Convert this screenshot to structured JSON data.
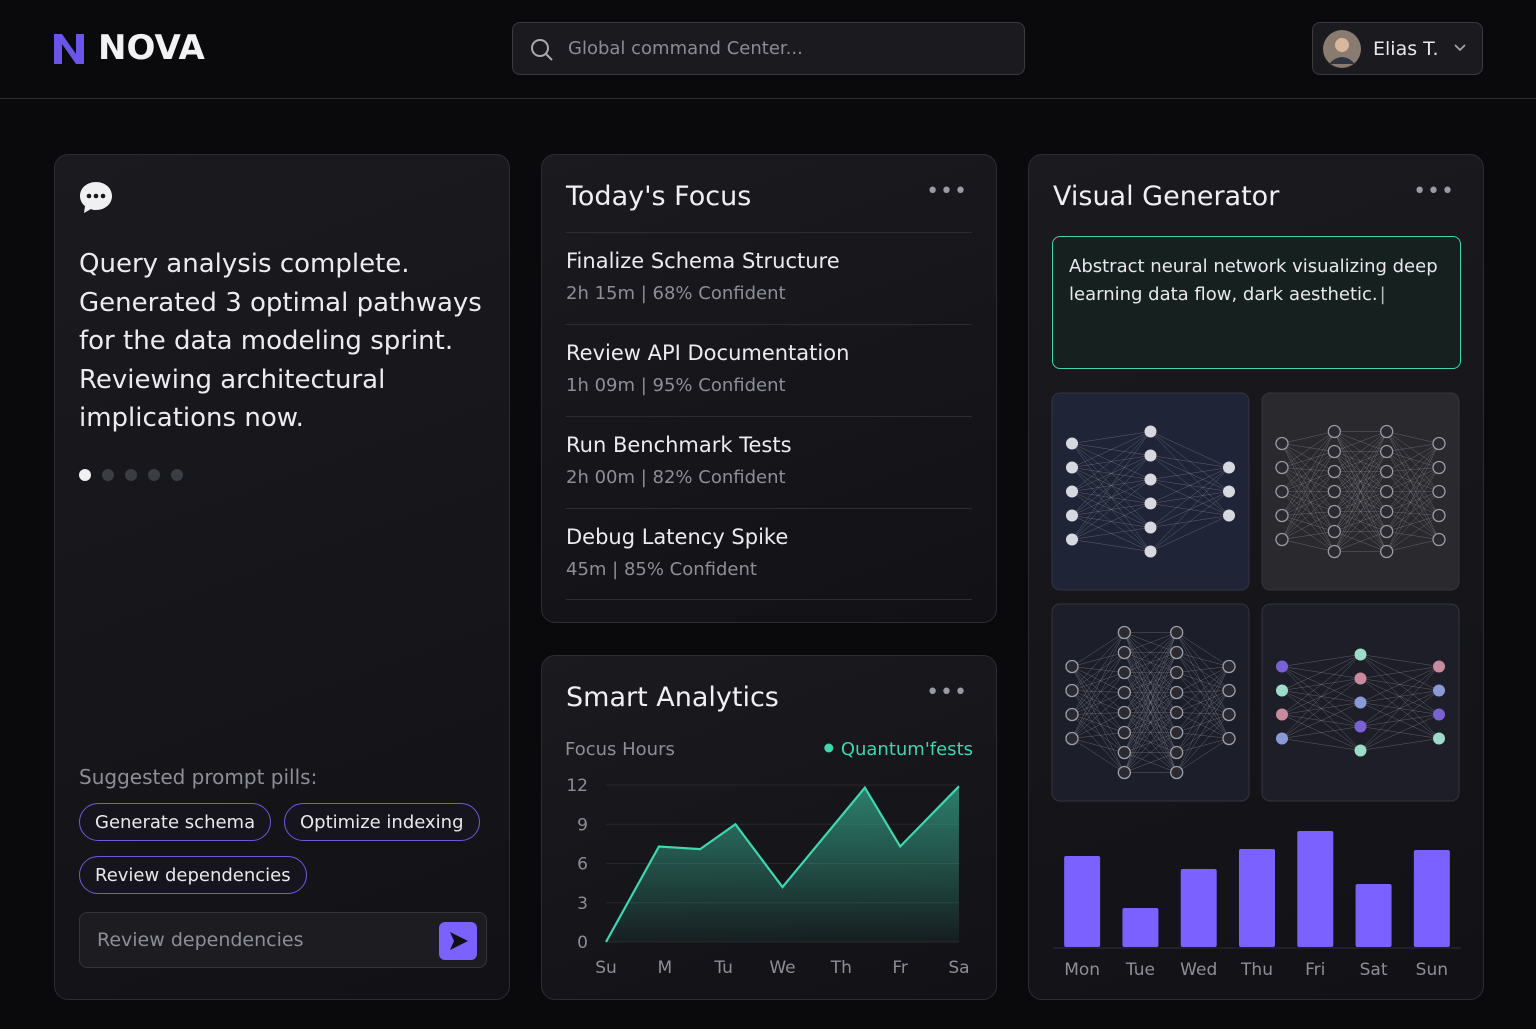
{
  "header": {
    "logo": "NOVA",
    "search_placeholder": "Global command Center...",
    "user": "Elias T."
  },
  "assistant": {
    "message": "Query analysis complete. Generated 3 optimal pathways for the data modeling sprint. Reviewing architectural implications now.",
    "pills_label": "Suggested prompt pills:",
    "pills": [
      "Generate schema",
      "Optimize indexing",
      "Review dependencies"
    ],
    "input_value": "Review dependencies"
  },
  "focus": {
    "title": "Today's Focus",
    "items": [
      {
        "title": "Finalize Schema Structure",
        "meta": "2h 15m | 68% Confident"
      },
      {
        "title": "Review API Documentation",
        "meta": "1h 09m | 95% Confident"
      },
      {
        "title": "Run Benchmark Tests",
        "meta": "2h 00m | 82% Confident"
      },
      {
        "title": "Debug Latency Spike",
        "meta": "45m | 85% Confident"
      }
    ]
  },
  "visual_generator": {
    "title": "Visual Generator",
    "prompt": "Abstract neural network visualizing deep learning data flow, dark aesthetic."
  },
  "chart_data": [
    {
      "type": "area",
      "title": "Smart Analytics",
      "y_label": "Focus Hours",
      "x": [
        0,
        0.9,
        1.6,
        2.2,
        3,
        4.4,
        5,
        6
      ],
      "xlim": [
        0,
        6
      ],
      "xticks": [
        {
          "value": 0,
          "label": "Su"
        },
        {
          "value": 1,
          "label": "M"
        },
        {
          "value": 2,
          "label": "Tu"
        },
        {
          "value": 3,
          "label": "We"
        },
        {
          "value": 4,
          "label": "Th"
        },
        {
          "value": 5,
          "label": "Fr"
        },
        {
          "value": 6,
          "label": "Sa"
        }
      ],
      "ylim": [
        0,
        12
      ],
      "yticks": [
        0,
        3,
        6,
        9,
        12
      ],
      "grid": true,
      "series": [
        {
          "name": "Quantum'fests",
          "color": "#3fd6b0",
          "values": [
            0,
            7.3,
            7.1,
            9,
            4.2,
            11.8,
            7.3,
            11.9
          ]
        }
      ]
    },
    {
      "type": "bar",
      "categories": [
        "Mon",
        "Tue",
        "Wed",
        "Thu",
        "Fri",
        "Sat",
        "Sun"
      ],
      "values": [
        91,
        39,
        78,
        98,
        116,
        63,
        97
      ],
      "color": "#7b61ff"
    }
  ]
}
